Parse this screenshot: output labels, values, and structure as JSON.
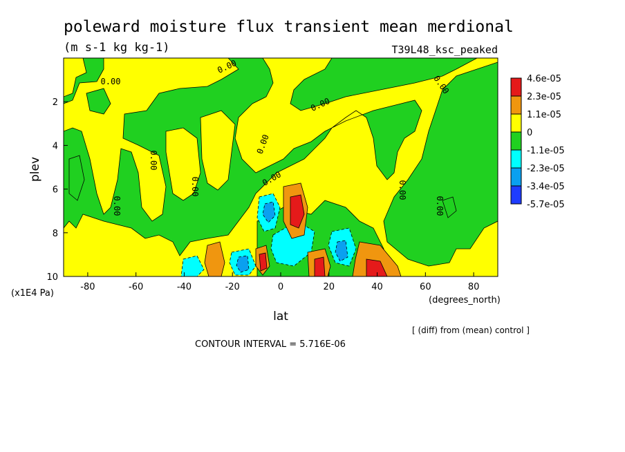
{
  "chart_data": {
    "type": "heatmap",
    "title": "poleward moisture flux transient mean merdional",
    "units": "(m s-1 kg kg-1)",
    "experiment": "T39L48_ksc_peaked",
    "xlabel": "lat",
    "xunits": "(degrees_north)",
    "ylabel": "plev",
    "yunits": "(x1E4 Pa)",
    "xlim": [
      -90,
      90
    ],
    "ylim": [
      10,
      0
    ],
    "xticks": [
      "-80",
      "-60",
      "-40",
      "-20",
      "0",
      "20",
      "40",
      "60",
      "80"
    ],
    "yticks": [
      "2",
      "4",
      "6",
      "8",
      "10"
    ],
    "contour_label": "0.00",
    "colorbar": {
      "labels": [
        "4.6e-05",
        "2.3e-05",
        "1.1e-05",
        "0",
        "-1.1e-05",
        "-2.3e-05",
        "-3.4e-05",
        "-5.7e-05"
      ],
      "colors": [
        "#e51a1a",
        "#f0960f",
        "#ffff00",
        "#20d020",
        "#00ffff",
        "#0aa0f0",
        "#1e3cff"
      ]
    },
    "note": "[ (diff) from (mean) control ]",
    "contour_interval": "CONTOUR INTERVAL = 5.716E-06"
  }
}
